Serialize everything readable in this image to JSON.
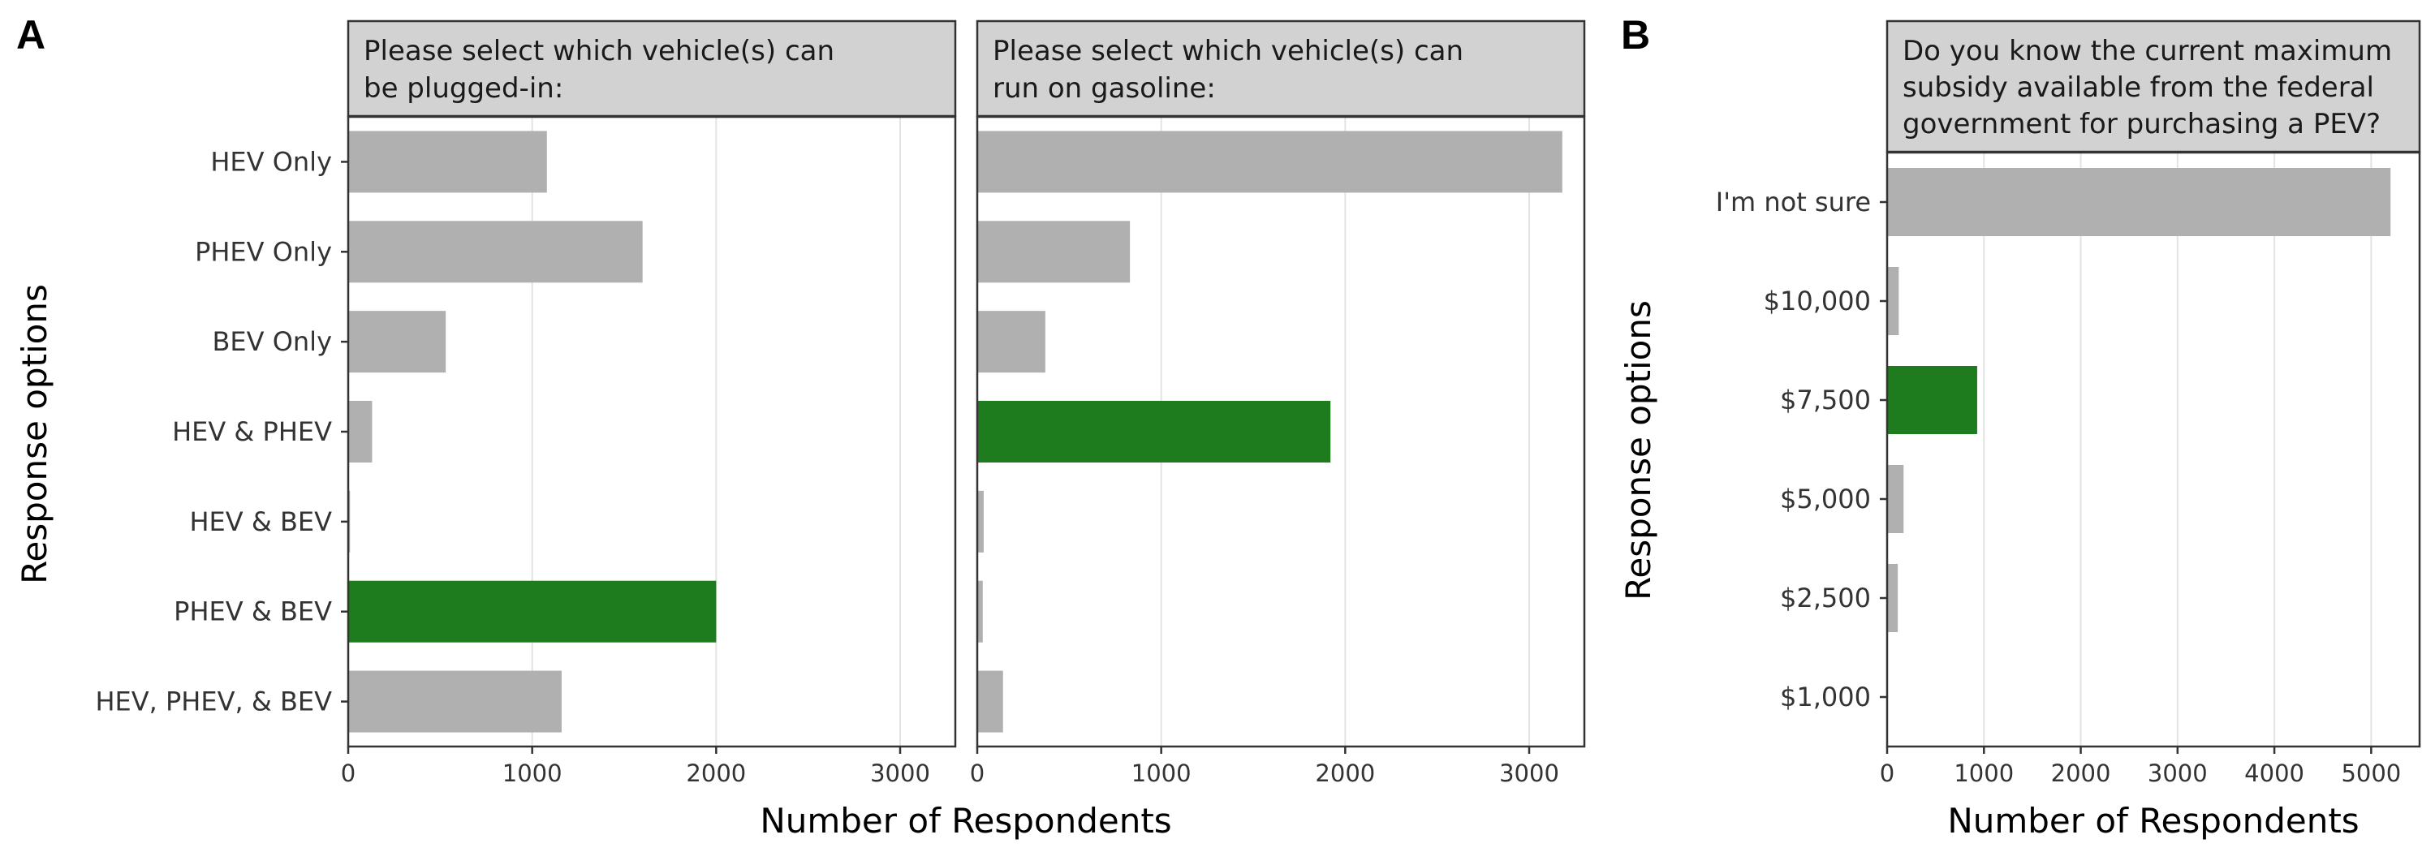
{
  "colors": {
    "bar_default": "#b0b0b0",
    "bar_correct": "#1e7b1e",
    "strip_bg": "#d2d2d2",
    "grid": "#e3e3e3",
    "frame": "#333333"
  },
  "panel_a": {
    "letter": "A",
    "ylabel": "Response options",
    "xlabel": "Number of Respondents",
    "chart_data": {
      "type": "bar",
      "orientation": "horizontal",
      "categories": [
        "HEV Only",
        "PHEV Only",
        "BEV Only",
        "HEV & PHEV",
        "HEV & BEV",
        "PHEV & BEV",
        "HEV, PHEV, & BEV"
      ],
      "xlim": [
        0,
        3300
      ],
      "xticks": [
        "0",
        "1000",
        "2000",
        "3000"
      ],
      "facets": [
        {
          "title_lines": [
            "Please select which vehicle(s) can",
            "be plugged-in:"
          ],
          "values": [
            1080,
            1600,
            530,
            130,
            10,
            2000,
            1160
          ],
          "correct": [
            false,
            false,
            false,
            false,
            false,
            true,
            false
          ]
        },
        {
          "title_lines": [
            "Please select which vehicle(s) can",
            "run on gasoline:"
          ],
          "values": [
            3180,
            830,
            370,
            1920,
            35,
            30,
            140
          ],
          "correct": [
            false,
            false,
            false,
            true,
            false,
            false,
            false
          ]
        }
      ]
    }
  },
  "panel_b": {
    "letter": "B",
    "ylabel": "Response options",
    "xlabel": "Number of Respondents",
    "chart_data": {
      "type": "bar",
      "orientation": "horizontal",
      "title_lines": [
        "Do you know the current maximum",
        "subsidy available from the federal",
        "government for purchasing a PEV?"
      ],
      "categories": [
        "I'm not sure",
        "$10,000",
        "$7,500",
        "$5,000",
        "$2,500",
        "$1,000"
      ],
      "values": [
        5200,
        120,
        930,
        170,
        110,
        0
      ],
      "correct": [
        false,
        false,
        true,
        false,
        false,
        false
      ],
      "xlim": [
        0,
        5500
      ],
      "xticks": [
        "0",
        "1000",
        "2000",
        "3000",
        "4000",
        "5000"
      ]
    }
  }
}
